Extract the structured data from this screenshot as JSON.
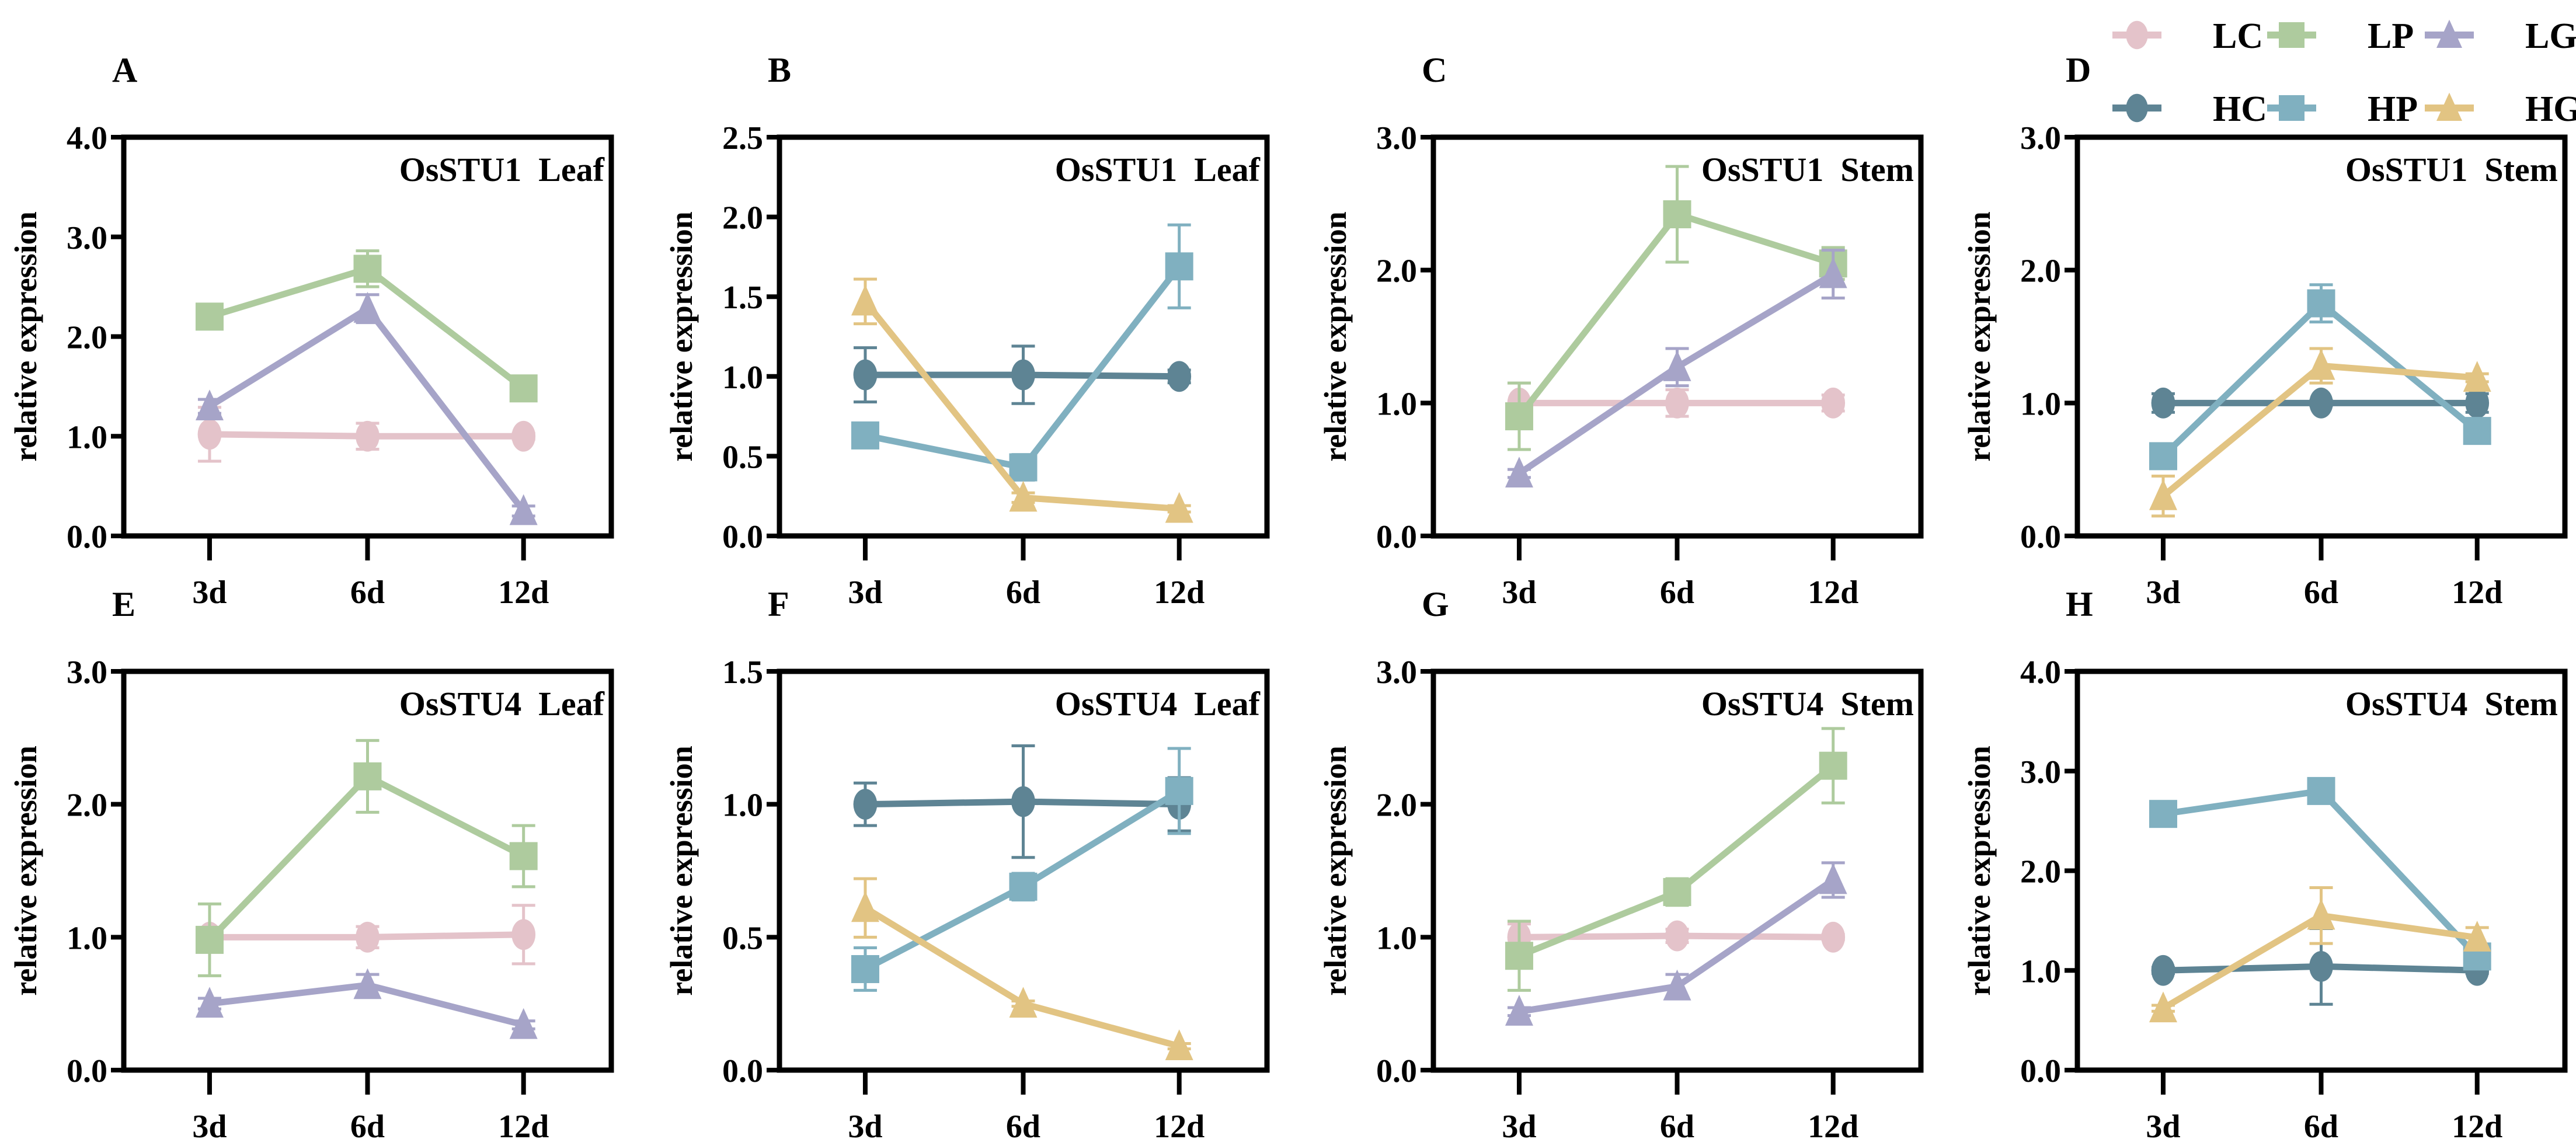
{
  "legend": [
    {
      "name": "LC",
      "color": "#e4c3ca",
      "marker": "circle"
    },
    {
      "name": "LP",
      "color": "#aecb9e",
      "marker": "square"
    },
    {
      "name": "LG",
      "color": "#a6a4c8",
      "marker": "triangle"
    },
    {
      "name": "HC",
      "color": "#5e8494",
      "marker": "circle"
    },
    {
      "name": "HP",
      "color": "#80b0c0",
      "marker": "square"
    },
    {
      "name": "HG",
      "color": "#e2c483",
      "marker": "triangle"
    }
  ],
  "chart_data": [
    {
      "type": "line",
      "panel": "A",
      "title": "OsSTU1  Leaf",
      "ylabel": "relative expression",
      "xlabel": "",
      "ylim": [
        0,
        4
      ],
      "yticks": [
        "0.0",
        "1.0",
        "2.0",
        "3.0",
        "4.0"
      ],
      "categories": [
        "3d",
        "6d",
        "12d"
      ],
      "series": [
        {
          "name": "LC",
          "values": [
            1.02,
            1.0,
            1.0
          ],
          "errors": [
            0.27,
            0.13,
            0.03
          ]
        },
        {
          "name": "LP",
          "values": [
            2.2,
            2.68,
            1.48
          ],
          "errors": [
            0.03,
            0.18,
            0.1
          ]
        },
        {
          "name": "LG",
          "values": [
            1.3,
            2.28,
            0.25
          ],
          "errors": [
            0.07,
            0.14,
            0.05
          ]
        }
      ]
    },
    {
      "type": "line",
      "panel": "B",
      "title": "OsSTU1  Leaf",
      "ylabel": "relative expression",
      "xlabel": "",
      "ylim": [
        0,
        2.5
      ],
      "yticks": [
        "0.0",
        "0.5",
        "1.0",
        "1.5",
        "2.0",
        "2.5"
      ],
      "categories": [
        "3d",
        "6d",
        "12d"
      ],
      "series": [
        {
          "name": "HC",
          "values": [
            1.01,
            1.01,
            1.0
          ],
          "errors": [
            0.17,
            0.18,
            0.04
          ]
        },
        {
          "name": "HP",
          "values": [
            0.63,
            0.43,
            1.69
          ],
          "errors": [
            0.02,
            0.08,
            0.26
          ]
        },
        {
          "name": "HG",
          "values": [
            1.47,
            0.24,
            0.17
          ],
          "errors": [
            0.14,
            0.03,
            0.02
          ]
        }
      ]
    },
    {
      "type": "line",
      "panel": "C",
      "title": "OsSTU1  Stem",
      "ylabel": "relative expression",
      "xlabel": "",
      "ylim": [
        0,
        3
      ],
      "yticks": [
        "0.0",
        "1.0",
        "2.0",
        "3.0"
      ],
      "categories": [
        "3d",
        "6d",
        "12d"
      ],
      "series": [
        {
          "name": "LC",
          "values": [
            1.0,
            1.0,
            1.0
          ],
          "errors": [
            0.15,
            0.1,
            0.06
          ]
        },
        {
          "name": "LP",
          "values": [
            0.9,
            2.42,
            2.05
          ],
          "errors": [
            0.25,
            0.36,
            0.12
          ]
        },
        {
          "name": "LG",
          "values": [
            0.47,
            1.27,
            1.97
          ],
          "errors": [
            0.03,
            0.14,
            0.18
          ]
        }
      ]
    },
    {
      "type": "line",
      "panel": "D",
      "title": "OsSTU1  Stem",
      "ylabel": "relative expression",
      "xlabel": "",
      "ylim": [
        0,
        3
      ],
      "yticks": [
        "0.0",
        "1.0",
        "2.0",
        "3.0"
      ],
      "categories": [
        "3d",
        "6d",
        "12d"
      ],
      "series": [
        {
          "name": "HC",
          "values": [
            1.0,
            1.0,
            1.0
          ],
          "errors": [
            0.07,
            0.02,
            0.07
          ]
        },
        {
          "name": "HP",
          "values": [
            0.6,
            1.75,
            0.79
          ],
          "errors": [
            0.04,
            0.14,
            0.03
          ]
        },
        {
          "name": "HG",
          "values": [
            0.3,
            1.28,
            1.19
          ],
          "errors": [
            0.15,
            0.13,
            0.03
          ]
        }
      ]
    },
    {
      "type": "line",
      "panel": "E",
      "title": "OsSTU4  Leaf",
      "ylabel": "relative expression",
      "xlabel": "",
      "ylim": [
        0,
        3
      ],
      "yticks": [
        "0.0",
        "1.0",
        "2.0",
        "3.0"
      ],
      "categories": [
        "3d",
        "6d",
        "12d"
      ],
      "series": [
        {
          "name": "LC",
          "values": [
            1.0,
            1.0,
            1.02
          ],
          "errors": [
            0.02,
            0.08,
            0.22
          ]
        },
        {
          "name": "LP",
          "values": [
            0.98,
            2.21,
            1.61
          ],
          "errors": [
            0.27,
            0.27,
            0.23
          ]
        },
        {
          "name": "LG",
          "values": [
            0.5,
            0.64,
            0.34
          ],
          "errors": [
            0.04,
            0.08,
            0.03
          ]
        }
      ]
    },
    {
      "type": "line",
      "panel": "F",
      "title": "OsSTU4  Leaf",
      "ylabel": "relative expression",
      "xlabel": "",
      "ylim": [
        0,
        1.5
      ],
      "yticks": [
        "0.0",
        "0.5",
        "1.0",
        "1.5"
      ],
      "categories": [
        "3d",
        "6d",
        "12d"
      ],
      "series": [
        {
          "name": "HC",
          "values": [
            1.0,
            1.01,
            1.0
          ],
          "errors": [
            0.08,
            0.21,
            0.1
          ]
        },
        {
          "name": "HP",
          "values": [
            0.38,
            0.69,
            1.05
          ],
          "errors": [
            0.08,
            0.05,
            0.16
          ]
        },
        {
          "name": "HG",
          "values": [
            0.61,
            0.25,
            0.09
          ],
          "errors": [
            0.11,
            0.01,
            0.01
          ]
        }
      ]
    },
    {
      "type": "line",
      "panel": "G",
      "title": "OsSTU4  Stem",
      "ylabel": "relative expression",
      "xlabel": "",
      "ylim": [
        0,
        3
      ],
      "yticks": [
        "0.0",
        "1.0",
        "2.0",
        "3.0"
      ],
      "categories": [
        "3d",
        "6d",
        "12d"
      ],
      "series": [
        {
          "name": "LC",
          "values": [
            1.0,
            1.01,
            1.0
          ],
          "errors": [
            0.1,
            0.05,
            0.02
          ]
        },
        {
          "name": "LP",
          "values": [
            0.86,
            1.34,
            2.29
          ],
          "errors": [
            0.26,
            0.1,
            0.28
          ]
        },
        {
          "name": "LG",
          "values": [
            0.44,
            0.63,
            1.43
          ],
          "errors": [
            0.03,
            0.09,
            0.13
          ]
        }
      ]
    },
    {
      "type": "line",
      "panel": "H",
      "title": "OsSTU4  Stem",
      "ylabel": "relative expression",
      "xlabel": "",
      "ylim": [
        0,
        4
      ],
      "yticks": [
        "0.0",
        "1.0",
        "2.0",
        "3.0",
        "4.0"
      ],
      "categories": [
        "3d",
        "6d",
        "12d"
      ],
      "series": [
        {
          "name": "HC",
          "values": [
            1.0,
            1.04,
            1.0
          ],
          "errors": [
            0.03,
            0.38,
            0.03
          ]
        },
        {
          "name": "HP",
          "values": [
            2.57,
            2.8,
            1.14
          ],
          "errors": [
            0.1,
            0.12,
            0.1
          ]
        },
        {
          "name": "HG",
          "values": [
            0.62,
            1.55,
            1.33
          ],
          "errors": [
            0.03,
            0.28,
            0.1
          ]
        }
      ]
    }
  ]
}
